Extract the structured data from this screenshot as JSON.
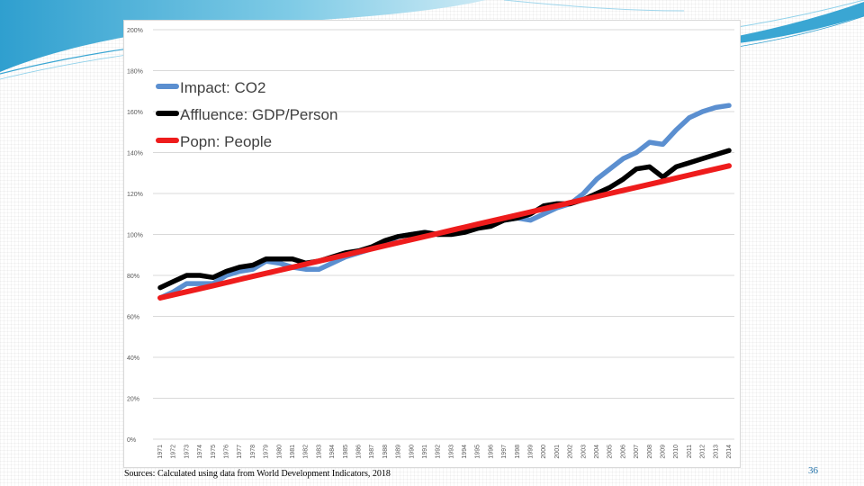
{
  "slide": {
    "source_text": "Sources: Calculated using data from World Development Indicators, 2018",
    "page_number": "36",
    "theme_colors": {
      "accent": "#4fb3d6",
      "accent_light": "#b7e2f0"
    }
  },
  "chart_data": {
    "type": "line",
    "title": "",
    "xlabel": "",
    "ylabel": "",
    "ylim": [
      0,
      200
    ],
    "y_ticks": [
      "0%",
      "20%",
      "40%",
      "60%",
      "80%",
      "100%",
      "120%",
      "140%",
      "160%",
      "180%",
      "200%"
    ],
    "grid": true,
    "legend_position": "top-left",
    "categories": [
      "1971",
      "1972",
      "1973",
      "1974",
      "1975",
      "1976",
      "1977",
      "1978",
      "1979",
      "1980",
      "1981",
      "1982",
      "1983",
      "1984",
      "1985",
      "1986",
      "1987",
      "1988",
      "1989",
      "1990",
      "1991",
      "1992",
      "1993",
      "1994",
      "1995",
      "1996",
      "1997",
      "1998",
      "1999",
      "2000",
      "2001",
      "2002",
      "2003",
      "2004",
      "2005",
      "2006",
      "2007",
      "2008",
      "2009",
      "2010",
      "2011",
      "2012",
      "2013",
      "2014"
    ],
    "series": [
      {
        "name": "Impact: CO2",
        "color": "#5b8fd0",
        "values": [
          69,
          72,
          76,
          76,
          76,
          80,
          82,
          83,
          87,
          86,
          84,
          83,
          83,
          86,
          89,
          91,
          93,
          96,
          99,
          100,
          101,
          100,
          101,
          102,
          103,
          105,
          107,
          108,
          107,
          110,
          113,
          115,
          120,
          127,
          132,
          137,
          140,
          145,
          144,
          151,
          157,
          160,
          162,
          163
        ]
      },
      {
        "name": "Affluence: GDP/Person",
        "color": "#000000",
        "values": [
          74,
          77,
          80,
          80,
          79,
          82,
          84,
          85,
          88,
          88,
          88,
          86,
          87,
          89,
          91,
          92,
          94,
          97,
          99,
          100,
          101,
          100,
          100,
          101,
          103,
          104,
          107,
          108,
          110,
          114,
          115,
          115,
          117,
          120,
          123,
          127,
          132,
          133,
          128,
          133,
          135,
          137,
          139,
          141
        ]
      },
      {
        "name": "Popn: People",
        "color": "#ee1c1c",
        "values": [
          69,
          70.5,
          72,
          73.5,
          75,
          76.5,
          78,
          79.5,
          81,
          82.5,
          84,
          85.5,
          87,
          88.5,
          90,
          91.5,
          93,
          94.5,
          96,
          97.5,
          99,
          100.5,
          102,
          103.5,
          105,
          106.5,
          108,
          109.5,
          111,
          112.5,
          114,
          115.5,
          117,
          118.5,
          120,
          121.5,
          123,
          124.5,
          126,
          127.5,
          129,
          130.5,
          132,
          133.5
        ]
      }
    ]
  }
}
